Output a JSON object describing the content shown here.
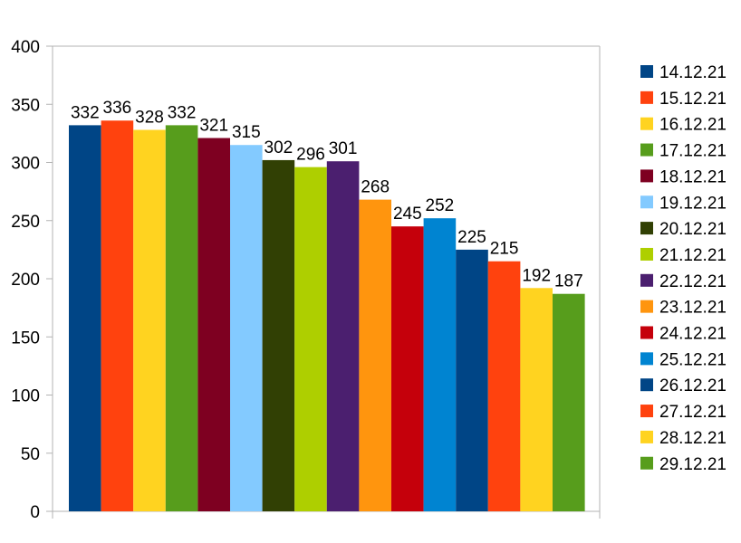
{
  "chart_data": {
    "type": "bar",
    "title": "",
    "xlabel": "",
    "ylabel": "",
    "ylim": [
      0,
      400
    ],
    "yticks": [
      "0",
      "50",
      "100",
      "150",
      "200",
      "250",
      "300",
      "350",
      "400"
    ],
    "grid": false,
    "legend_position": "right",
    "series": [
      {
        "name": "14.12.21",
        "value": 332,
        "color": "#004586"
      },
      {
        "name": "15.12.21",
        "value": 336,
        "color": "#ff420e"
      },
      {
        "name": "16.12.21",
        "value": 328,
        "color": "#ffd320"
      },
      {
        "name": "17.12.21",
        "value": 332,
        "color": "#579d1c"
      },
      {
        "name": "18.12.21",
        "value": 321,
        "color": "#7e0021"
      },
      {
        "name": "19.12.21",
        "value": 315,
        "color": "#83caff"
      },
      {
        "name": "20.12.21",
        "value": 302,
        "color": "#314004"
      },
      {
        "name": "21.12.21",
        "value": 296,
        "color": "#aecf00"
      },
      {
        "name": "22.12.21",
        "value": 301,
        "color": "#4b1f6f"
      },
      {
        "name": "23.12.21",
        "value": 268,
        "color": "#ff950e"
      },
      {
        "name": "24.12.21",
        "value": 245,
        "color": "#c5000b"
      },
      {
        "name": "25.12.21",
        "value": 252,
        "color": "#0084d1"
      },
      {
        "name": "26.12.21",
        "value": 225,
        "color": "#004586"
      },
      {
        "name": "27.12.21",
        "value": 215,
        "color": "#ff420e"
      },
      {
        "name": "28.12.21",
        "value": 192,
        "color": "#ffd320"
      },
      {
        "name": "29.12.21",
        "value": 187,
        "color": "#579d1c"
      }
    ]
  }
}
